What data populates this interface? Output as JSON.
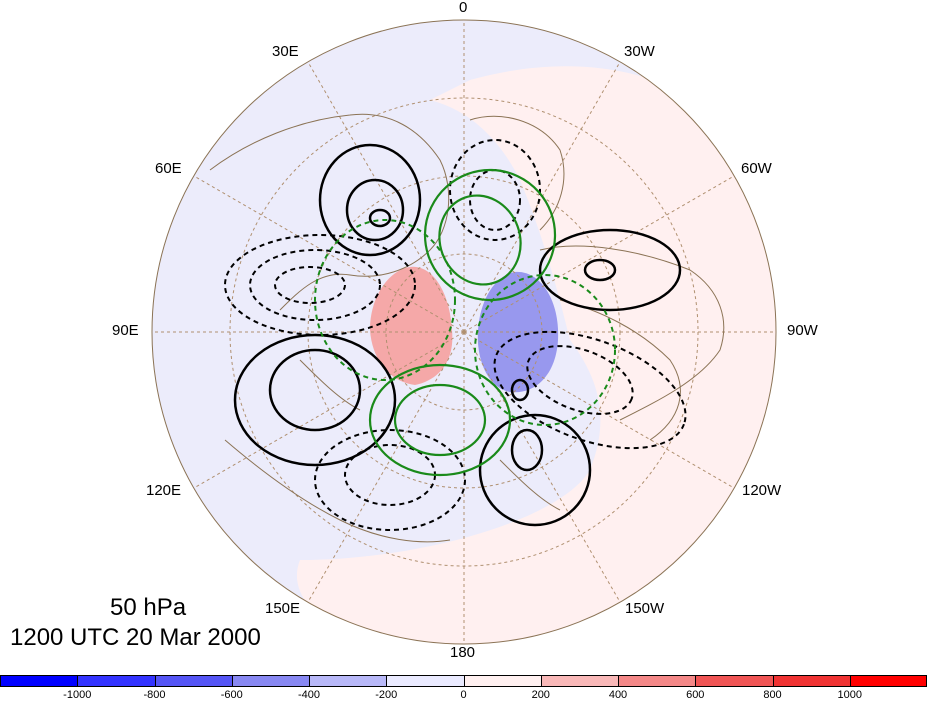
{
  "map": {
    "projection": "north-polar-stereographic",
    "longitude_labels": [
      {
        "text": "0",
        "name": "lon-label-0"
      },
      {
        "text": "30W",
        "name": "lon-label-30w"
      },
      {
        "text": "60W",
        "name": "lon-label-60w"
      },
      {
        "text": "90W",
        "name": "lon-label-90w"
      },
      {
        "text": "120W",
        "name": "lon-label-120w"
      },
      {
        "text": "150W",
        "name": "lon-label-150w"
      },
      {
        "text": "180",
        "name": "lon-label-180"
      },
      {
        "text": "150E",
        "name": "lon-label-150e"
      },
      {
        "text": "120E",
        "name": "lon-label-120e"
      },
      {
        "text": "90E",
        "name": "lon-label-90e"
      },
      {
        "text": "60E",
        "name": "lon-label-60e"
      },
      {
        "text": "30E",
        "name": "lon-label-30e"
      }
    ],
    "colors": {
      "positive_solid_contour": "#000000",
      "negative_dashed_contour": "#000000",
      "green_contour": "#1a8a1a",
      "coastline": "#8b7355",
      "graticule": "#b09070"
    }
  },
  "title": {
    "line1": "50 hPa",
    "line2": "1200 UTC 20 Mar 2000"
  },
  "colorbar": {
    "colors": [
      "#0000ff",
      "#3333ff",
      "#5555f5",
      "#8888f2",
      "#b8b8f8",
      "#eaeaff",
      "#fff0f0",
      "#f9b8b8",
      "#f48888",
      "#f05555",
      "#f03333",
      "#ff0000"
    ],
    "labels": [
      "-1000",
      "-800",
      "-600",
      "-400",
      "-200",
      "0",
      "200",
      "400",
      "600",
      "800",
      "1000"
    ]
  }
}
